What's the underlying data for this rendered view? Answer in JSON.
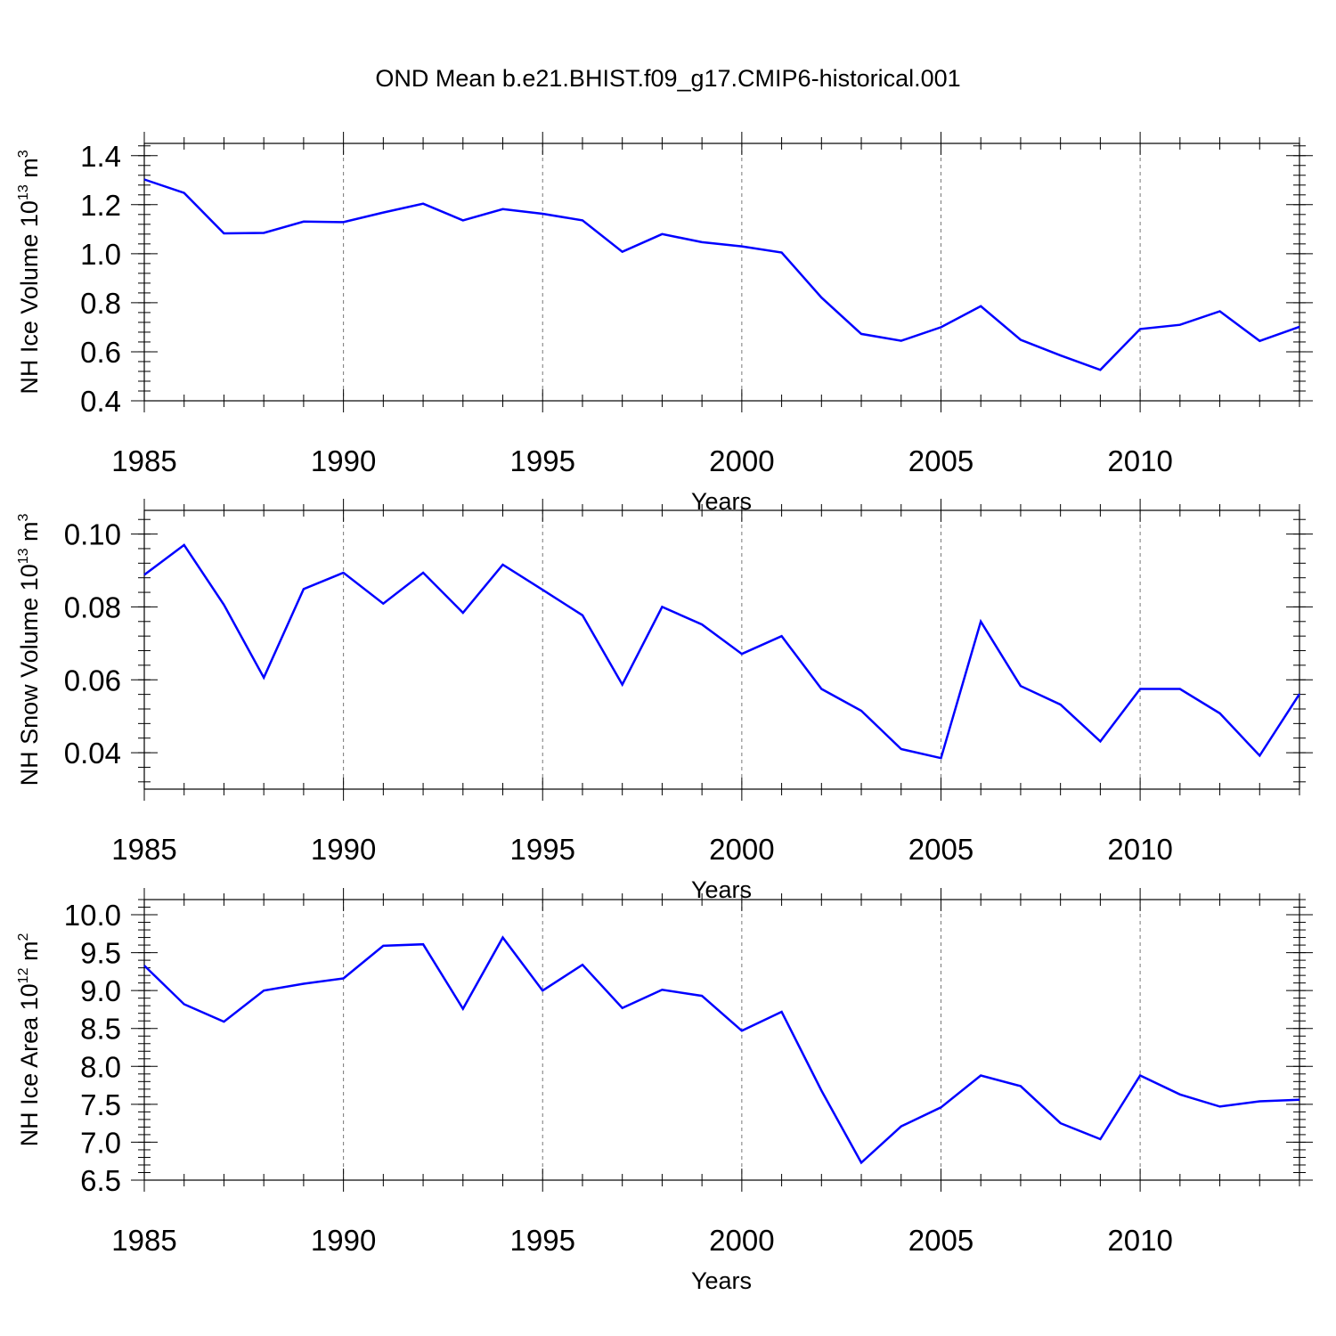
{
  "title": "OND Mean b.e21.BHIST.f09_g17.CMIP6-historical.001",
  "chart_data": [
    {
      "type": "line",
      "xlabel": "Years",
      "ylabel": {
        "base": "NH Ice Volume 10",
        "exp": "13",
        "unit": " m",
        "unit_exp": "3"
      },
      "xlim": [
        1985,
        2014
      ],
      "ylim": [
        0.4,
        1.45
      ],
      "x_ticks": [
        1985,
        1990,
        1995,
        2000,
        2005,
        2010
      ],
      "y_ticks": [
        "0.4",
        "0.6",
        "0.8",
        "1.0",
        "1.2",
        "1.4"
      ],
      "y_minor_step": 0.04,
      "grid": "vertical dashed at major x ticks",
      "color": "#0000ff",
      "x": [
        1985,
        1986,
        1987,
        1988,
        1989,
        1990,
        1991,
        1992,
        1993,
        1994,
        1995,
        1996,
        1997,
        1998,
        1999,
        2000,
        2001,
        2002,
        2003,
        2004,
        2005,
        2006,
        2007,
        2008,
        2009,
        2010,
        2011,
        2012,
        2013,
        2014
      ],
      "values": [
        1.303,
        1.248,
        1.083,
        1.085,
        1.131,
        1.129,
        1.168,
        1.204,
        1.136,
        1.182,
        1.163,
        1.136,
        1.008,
        1.08,
        1.047,
        1.03,
        1.005,
        0.821,
        0.673,
        0.645,
        0.7,
        0.786,
        0.649,
        0.585,
        0.526,
        0.693,
        0.71,
        0.765,
        0.644,
        0.702
      ]
    },
    {
      "type": "line",
      "xlabel": "Years",
      "ylabel": {
        "base": "NH Snow Volume 10",
        "exp": "13",
        "unit": " m",
        "unit_exp": "3"
      },
      "xlim": [
        1985,
        2014
      ],
      "ylim": [
        0.03,
        0.1065
      ],
      "x_ticks": [
        1985,
        1990,
        1995,
        2000,
        2005,
        2010
      ],
      "y_ticks": [
        "0.04",
        "0.06",
        "0.08",
        "0.10"
      ],
      "y_minor_step": 0.004,
      "grid": "vertical dashed at major x ticks",
      "color": "#0000ff",
      "x": [
        1985,
        1986,
        1987,
        1988,
        1989,
        1990,
        1991,
        1992,
        1993,
        1994,
        1995,
        1996,
        1997,
        1998,
        1999,
        2000,
        2001,
        2002,
        2003,
        2004,
        2005,
        2006,
        2007,
        2008,
        2009,
        2010,
        2011,
        2012,
        2013,
        2014
      ],
      "values": [
        0.0888,
        0.097,
        0.0806,
        0.0606,
        0.0849,
        0.0894,
        0.0809,
        0.0894,
        0.0784,
        0.0916,
        0.0847,
        0.0777,
        0.0587,
        0.08,
        0.0752,
        0.0671,
        0.072,
        0.0575,
        0.0515,
        0.041,
        0.0385,
        0.076,
        0.0583,
        0.0532,
        0.0431,
        0.0575,
        0.0575,
        0.0508,
        0.0392,
        0.0561
      ]
    },
    {
      "type": "line",
      "xlabel": "Years",
      "ylabel": {
        "base": "NH Ice Area 10",
        "exp": "12",
        "unit": " m",
        "unit_exp": "2"
      },
      "xlim": [
        1985,
        2014
      ],
      "ylim": [
        6.5,
        10.2
      ],
      "x_ticks": [
        1985,
        1990,
        1995,
        2000,
        2005,
        2010
      ],
      "y_ticks": [
        "6.5",
        "7.0",
        "7.5",
        "8.0",
        "8.5",
        "9.0",
        "9.5",
        "10.0"
      ],
      "y_minor_step": 0.1,
      "grid": "vertical dashed at major x ticks",
      "color": "#0000ff",
      "x": [
        1985,
        1986,
        1987,
        1988,
        1989,
        1990,
        1991,
        1992,
        1993,
        1994,
        1995,
        1996,
        1997,
        1998,
        1999,
        2000,
        2001,
        2002,
        2003,
        2004,
        2005,
        2006,
        2007,
        2008,
        2009,
        2010,
        2011,
        2012,
        2013,
        2014
      ],
      "values": [
        9.33,
        8.82,
        8.59,
        9.0,
        9.09,
        9.16,
        9.59,
        9.61,
        8.76,
        9.7,
        9.0,
        9.34,
        8.77,
        9.01,
        8.93,
        8.47,
        8.72,
        7.68,
        6.73,
        7.21,
        7.46,
        7.88,
        7.74,
        7.25,
        7.04,
        7.88,
        7.63,
        7.47,
        7.54,
        7.56
      ]
    }
  ]
}
